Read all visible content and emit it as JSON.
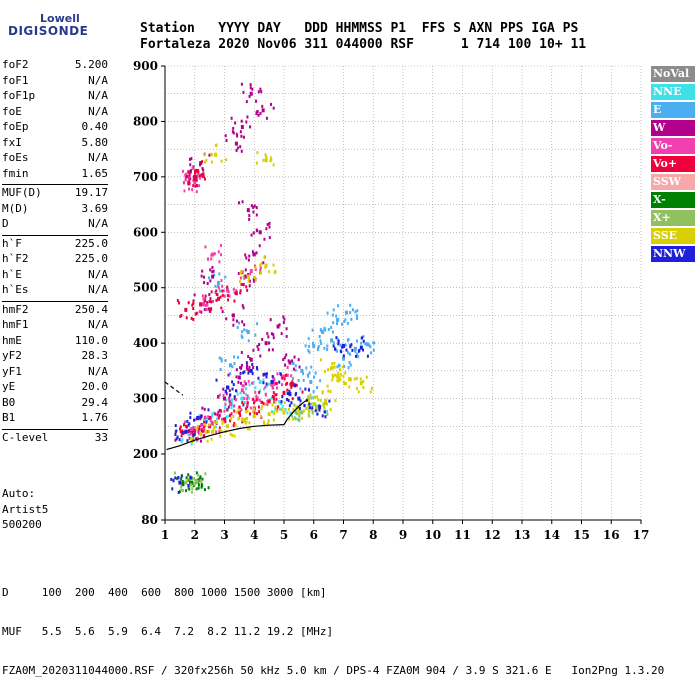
{
  "logo": {
    "line1": "Lowell",
    "line2": "DIGISONDE"
  },
  "header": {
    "line1": "Station   YYYY DAY   DDD HHMMSS P1  FFS S AXN PPS IGA PS",
    "line2": "Fortaleza 2020 Nov06 311 044000 RSF      1 714 100 10+ 11"
  },
  "params": [
    [
      {
        "name": "foF2",
        "value": "5.200"
      },
      {
        "name": "foF1",
        "value": "N/A"
      },
      {
        "name": "foF1p",
        "value": "N/A"
      },
      {
        "name": "foE",
        "value": "N/A"
      },
      {
        "name": "foEp",
        "value": "0.40"
      },
      {
        "name": "fxI",
        "value": "5.80"
      },
      {
        "name": "foEs",
        "value": "N/A"
      },
      {
        "name": "fmin",
        "value": "1.65"
      }
    ],
    [
      {
        "name": "MUF(D)",
        "value": "19.17"
      },
      {
        "name": "M(D)",
        "value": "3.69"
      },
      {
        "name": "D",
        "value": "N/A"
      }
    ],
    [
      {
        "name": "h`F",
        "value": "225.0"
      },
      {
        "name": "h`F2",
        "value": "225.0"
      },
      {
        "name": "h`E",
        "value": "N/A"
      },
      {
        "name": "h`Es",
        "value": "N/A"
      }
    ],
    [
      {
        "name": "hmF2",
        "value": "250.4"
      },
      {
        "name": "hmF1",
        "value": "N/A"
      },
      {
        "name": "hmE",
        "value": "110.0"
      },
      {
        "name": "yF2",
        "value": "28.3"
      },
      {
        "name": "yF1",
        "value": "N/A"
      },
      {
        "name": "yE",
        "value": "20.0"
      },
      {
        "name": "B0",
        "value": "29.4"
      },
      {
        "name": "B1",
        "value": "1.76"
      }
    ],
    [
      {
        "name": "C-level",
        "value": "33"
      }
    ]
  ],
  "auto": {
    "line1": "Auto:",
    "line2": "Artist5",
    "line3": "500200"
  },
  "legend": [
    {
      "label": "NoVal",
      "color": "#8c8c8c"
    },
    {
      "label": "NNE",
      "color": "#40e0e8"
    },
    {
      "label": "E",
      "color": "#4aaef0"
    },
    {
      "label": "W",
      "color": "#b0008c"
    },
    {
      "label": "Vo-",
      "color": "#f040b0"
    },
    {
      "label": "Vo+",
      "color": "#f0003c"
    },
    {
      "label": "SSW",
      "color": "#f8a8a8"
    },
    {
      "label": "X-",
      "color": "#008000"
    },
    {
      "label": "X+",
      "color": "#90c060"
    },
    {
      "label": "SSE",
      "color": "#d8d000"
    },
    {
      "label": "NNW",
      "color": "#2020d8"
    }
  ],
  "footer": {
    "line1": "D     100  200  400  600  800 1000 1500 3000 [km]",
    "line2": "MUF   5.5  5.6  5.9  6.4  7.2  8.2 11.2 19.2 [MHz]",
    "line3": "FZA0M_2020311044000.RSF / 320fx256h 50 kHz 5.0 km / DPS-4 FZA0M 904 / 3.9 S 321.6 E   Ion2Png 1.3.20"
  },
  "chart_data": {
    "type": "scatter",
    "xlim": [
      1,
      17
    ],
    "ylim": [
      80,
      900
    ],
    "xticks": [
      1,
      2,
      3,
      4,
      5,
      6,
      7,
      8,
      9,
      10,
      11,
      12,
      13,
      14,
      15,
      16,
      17
    ],
    "yticks": [
      80,
      200,
      300,
      400,
      500,
      600,
      700,
      800,
      900
    ],
    "grid": true,
    "series": [
      {
        "name": "NNE",
        "color": "#40e0e8",
        "points": [
          [
            1.8,
            236
          ],
          [
            2.4,
            262
          ],
          [
            3.1,
            280
          ],
          [
            3.6,
            300
          ],
          [
            4.2,
            330
          ],
          [
            4.9,
            292
          ],
          [
            5.4,
            275
          ],
          [
            6.1,
            284
          ]
        ]
      },
      {
        "name": "E",
        "color": "#4aaef0",
        "points": [
          [
            5.6,
            350
          ],
          [
            6.0,
            395
          ],
          [
            6.3,
            420
          ],
          [
            6.6,
            405
          ],
          [
            7.0,
            372
          ],
          [
            7.4,
            390
          ],
          [
            7.8,
            398
          ],
          [
            6.8,
            442
          ],
          [
            7.1,
            455
          ],
          [
            5.9,
            330
          ],
          [
            3.2,
            360
          ],
          [
            3.8,
            420
          ],
          [
            2.8,
            508
          ]
        ]
      },
      {
        "name": "W",
        "color": "#b0008c",
        "points": [
          [
            1.9,
            240
          ],
          [
            2.5,
            265
          ],
          [
            3.0,
            300
          ],
          [
            3.5,
            338
          ],
          [
            3.9,
            370
          ],
          [
            4.4,
            400
          ],
          [
            4.8,
            430
          ],
          [
            5.2,
            365
          ],
          [
            3.3,
            450
          ],
          [
            3.7,
            520
          ],
          [
            4.0,
            560
          ],
          [
            4.2,
            600
          ],
          [
            3.8,
            640
          ],
          [
            2.2,
            470
          ],
          [
            2.6,
            520
          ],
          [
            2.0,
            700
          ],
          [
            2.2,
            725
          ],
          [
            3.4,
            760
          ],
          [
            3.6,
            790
          ],
          [
            3.9,
            850
          ],
          [
            4.3,
            820
          ]
        ]
      },
      {
        "name": "Vo-",
        "color": "#f040b0",
        "points": [
          [
            1.9,
            245
          ],
          [
            2.6,
            255
          ],
          [
            3.2,
            290
          ],
          [
            3.6,
            315
          ],
          [
            4.1,
            300
          ],
          [
            4.6,
            325
          ],
          [
            5.0,
            340
          ],
          [
            2.3,
            470
          ],
          [
            3.1,
            495
          ],
          [
            3.9,
            530
          ],
          [
            2.0,
            690
          ],
          [
            1.8,
            700
          ],
          [
            2.6,
            560
          ]
        ]
      },
      {
        "name": "Vo+",
        "color": "#f0003c",
        "points": [
          [
            1.6,
            238
          ],
          [
            2.0,
            242
          ],
          [
            2.5,
            250
          ],
          [
            3.0,
            262
          ],
          [
            3.5,
            275
          ],
          [
            4.0,
            282
          ],
          [
            4.5,
            295
          ],
          [
            5.0,
            310
          ],
          [
            5.3,
            325
          ],
          [
            1.7,
            460
          ],
          [
            2.2,
            470
          ],
          [
            2.8,
            480
          ],
          [
            3.4,
            490
          ],
          [
            1.8,
            690
          ],
          [
            2.1,
            710
          ]
        ]
      },
      {
        "name": "X-",
        "color": "#008000",
        "points": [
          [
            1.6,
            145
          ],
          [
            1.9,
            148
          ],
          [
            2.1,
            150
          ]
        ]
      },
      {
        "name": "X+",
        "color": "#90c060",
        "points": [
          [
            1.7,
            148
          ],
          [
            2.0,
            146
          ],
          [
            5.6,
            275
          ],
          [
            6.1,
            285
          ]
        ]
      },
      {
        "name": "SSE",
        "color": "#d8d000",
        "points": [
          [
            2.2,
            236
          ],
          [
            2.6,
            240
          ],
          [
            3.1,
            250
          ],
          [
            3.6,
            262
          ],
          [
            4.0,
            268
          ],
          [
            4.5,
            272
          ],
          [
            5.0,
            275
          ],
          [
            5.5,
            280
          ],
          [
            6.0,
            290
          ],
          [
            6.4,
            296
          ],
          [
            6.8,
            340
          ],
          [
            7.2,
            335
          ],
          [
            7.6,
            328
          ],
          [
            6.6,
            355
          ],
          [
            3.8,
            520
          ],
          [
            4.4,
            540
          ],
          [
            2.7,
            740
          ],
          [
            4.4,
            730
          ]
        ]
      },
      {
        "name": "NNW",
        "color": "#2020d8",
        "points": [
          [
            1.5,
            148
          ],
          [
            1.7,
            240
          ],
          [
            2.1,
            265
          ],
          [
            3.1,
            320
          ],
          [
            3.9,
            350
          ],
          [
            4.6,
            330
          ],
          [
            5.2,
            308
          ],
          [
            5.5,
            300
          ],
          [
            7.0,
            395
          ],
          [
            7.6,
            392
          ],
          [
            6.2,
            285
          ]
        ]
      }
    ],
    "profile_line": [
      [
        1.05,
        208
      ],
      [
        1.5,
        215
      ],
      [
        2.0,
        225
      ],
      [
        2.5,
        233
      ],
      [
        3.0,
        240
      ],
      [
        3.5,
        246
      ],
      [
        4.0,
        250
      ],
      [
        4.5,
        252
      ],
      [
        5.0,
        253
      ],
      [
        5.1,
        262
      ],
      [
        5.3,
        275
      ],
      [
        5.5,
        286
      ],
      [
        5.7,
        295
      ],
      [
        5.8,
        297
      ]
    ],
    "profile_dashed": [
      [
        1.0,
        330
      ],
      [
        1.3,
        318
      ],
      [
        1.6,
        306
      ]
    ]
  }
}
